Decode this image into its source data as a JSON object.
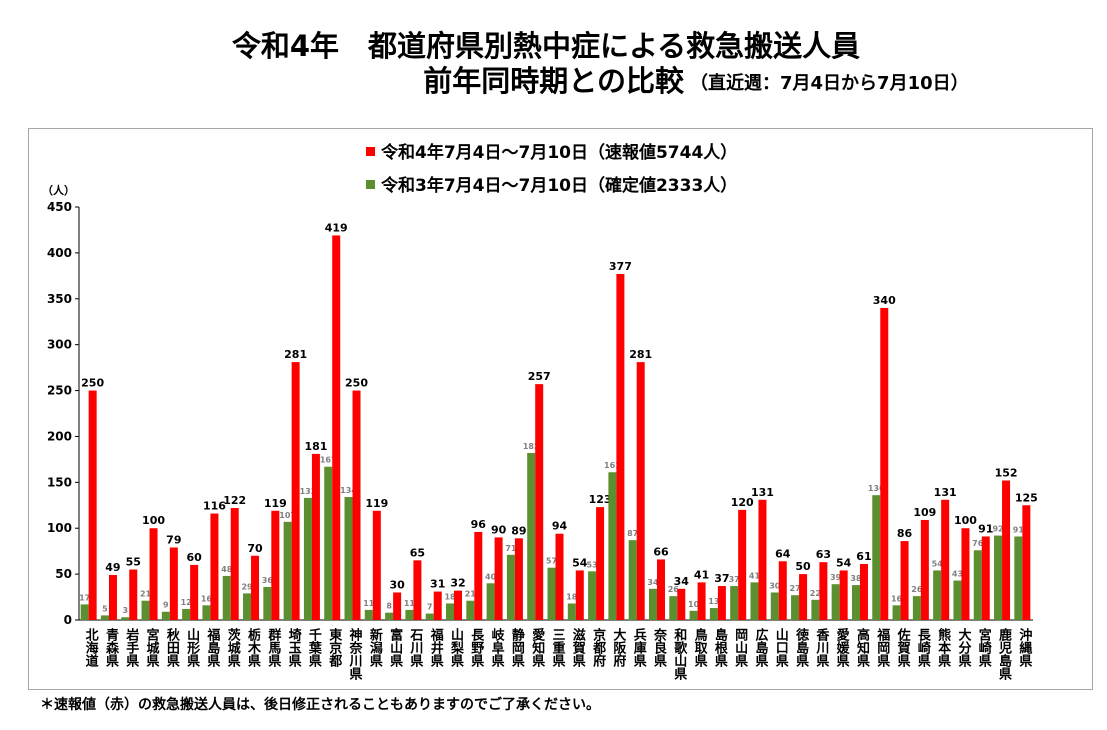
{
  "chart_data": {
    "type": "bar",
    "title": "令和4年　都道府県別熱中症による救急搬送人員",
    "subtitle": "前年同時期との比較",
    "subtitle_note": "（直近週：7月4日から7月10日）",
    "ylabel": "（人）",
    "ylim": [
      0,
      450
    ],
    "yticks": [
      0,
      50,
      100,
      150,
      200,
      250,
      300,
      350,
      400,
      450
    ],
    "grid": false,
    "legend_position": "top-center",
    "data_labels": true,
    "categories": [
      "北海道",
      "青森県",
      "岩手県",
      "宮城県",
      "秋田県",
      "山形県",
      "福島県",
      "茨城県",
      "栃木県",
      "群馬県",
      "埼玉県",
      "千葉県",
      "東京都",
      "神奈川県",
      "新潟県",
      "富山県",
      "石川県",
      "福井県",
      "山梨県",
      "長野県",
      "岐阜県",
      "静岡県",
      "愛知県",
      "三重県",
      "滋賀県",
      "京都府",
      "大阪府",
      "兵庫県",
      "奈良県",
      "和歌山県",
      "鳥取県",
      "島根県",
      "岡山県",
      "広島県",
      "山口県",
      "徳島県",
      "香川県",
      "愛媛県",
      "高知県",
      "福岡県",
      "佐賀県",
      "長崎県",
      "熊本県",
      "大分県",
      "宮崎県",
      "鹿児島県",
      "沖縄県"
    ],
    "series": [
      {
        "name": "令和4年7月4日～7月10日（速報値5744人）",
        "color": "#ff0000",
        "values": [
          250,
          49,
          55,
          100,
          79,
          60,
          116,
          122,
          70,
          119,
          281,
          181,
          419,
          250,
          119,
          30,
          65,
          31,
          32,
          96,
          90,
          89,
          257,
          94,
          54,
          123,
          377,
          281,
          66,
          34,
          41,
          37,
          120,
          131,
          64,
          50,
          63,
          54,
          61,
          340,
          86,
          109,
          131,
          100,
          91,
          152,
          125
        ]
      },
      {
        "name": "令和3年7月4日～7月10日（確定値2333人）",
        "color": "#5b8f2f",
        "values": [
          17,
          5,
          3,
          21,
          9,
          12,
          16,
          48,
          29,
          36,
          107,
          133,
          167,
          134,
          11,
          8,
          11,
          7,
          18,
          21,
          40,
          71,
          182,
          57,
          18,
          53,
          161,
          87,
          34,
          26,
          10,
          13,
          37,
          41,
          30,
          27,
          22,
          39,
          38,
          136,
          16,
          26,
          54,
          43,
          76,
          92,
          91
        ]
      }
    ]
  },
  "footnote": "＊速報値（赤）の救急搬送人員は、後日修正されることもありますのでご了承ください。"
}
